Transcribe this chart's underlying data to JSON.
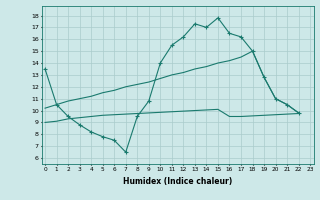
{
  "line1_x": [
    0,
    1,
    2,
    3,
    4,
    5,
    6,
    7,
    8,
    9,
    10,
    11,
    12,
    13,
    14,
    15,
    16,
    17,
    18,
    19,
    20,
    21,
    22
  ],
  "line1_y": [
    13.5,
    10.5,
    9.5,
    8.8,
    8.2,
    7.8,
    7.5,
    6.5,
    9.5,
    10.8,
    14.0,
    15.5,
    16.2,
    17.3,
    17.0,
    17.8,
    16.5,
    16.2,
    15.0,
    12.8,
    11.0,
    10.5,
    9.8
  ],
  "line2_x": [
    0,
    1,
    2,
    3,
    4,
    5,
    6,
    7,
    8,
    9,
    10,
    11,
    12,
    13,
    14,
    15,
    16,
    17,
    18,
    19,
    20,
    21,
    22
  ],
  "line2_y": [
    10.2,
    10.5,
    10.8,
    11.0,
    11.2,
    11.5,
    11.7,
    12.0,
    12.2,
    12.4,
    12.7,
    13.0,
    13.2,
    13.5,
    13.7,
    14.0,
    14.2,
    14.5,
    15.0,
    12.8,
    11.0,
    10.5,
    9.8
  ],
  "line3_x": [
    0,
    1,
    2,
    3,
    4,
    5,
    6,
    7,
    8,
    9,
    10,
    11,
    12,
    13,
    14,
    15,
    16,
    17,
    18,
    19,
    20,
    21,
    22
  ],
  "line3_y": [
    9.0,
    9.1,
    9.3,
    9.4,
    9.5,
    9.6,
    9.65,
    9.7,
    9.75,
    9.8,
    9.85,
    9.9,
    9.95,
    10.0,
    10.05,
    10.1,
    9.5,
    9.5,
    9.55,
    9.6,
    9.65,
    9.7,
    9.75
  ],
  "color": "#1a7a6e",
  "bg_color": "#cde8e8",
  "grid_color": "#aacccc",
  "xlabel": "Humidex (Indice chaleur)",
  "yticks": [
    6,
    7,
    8,
    9,
    10,
    11,
    12,
    13,
    14,
    15,
    16,
    17,
    18
  ],
  "xticks": [
    0,
    1,
    2,
    3,
    4,
    5,
    6,
    7,
    8,
    9,
    10,
    11,
    12,
    13,
    14,
    15,
    16,
    17,
    18,
    19,
    20,
    21,
    22,
    23
  ],
  "xlim": [
    -0.3,
    23.3
  ],
  "ylim": [
    5.5,
    18.8
  ]
}
